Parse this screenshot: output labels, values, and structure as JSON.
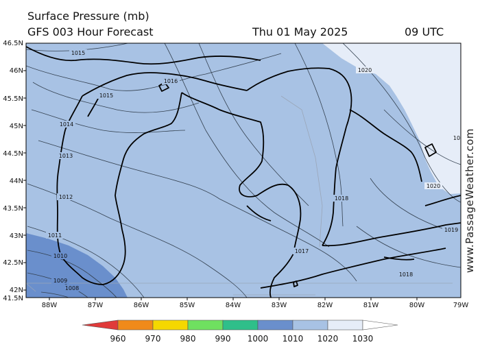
{
  "header": {
    "title": "Surface Pressure (mb)",
    "model_line": "GFS 003 Hour Forecast",
    "date": "Thu 01 May 2025",
    "time": "09 UTC"
  },
  "credit": "www.PassageWeather.com",
  "axes": {
    "lat_labels": [
      "46.5N",
      "46N",
      "45.5N",
      "45N",
      "44.5N",
      "44N",
      "43.5N",
      "43N",
      "42.5N",
      "42N",
      "41.5N"
    ],
    "lon_labels": [
      "88W",
      "87W",
      "86W",
      "85W",
      "84W",
      "83W",
      "82W",
      "81W",
      "80W",
      "79W"
    ]
  },
  "isobar_labels": [
    "1015",
    "1016",
    "1015",
    "1014",
    "1013",
    "1012",
    "1011",
    "1010",
    "1009",
    "1008",
    "1020",
    "1020",
    "1019",
    "1018",
    "1017",
    "1018",
    "10"
  ],
  "colorbar": {
    "labels": [
      "960",
      "970",
      "980",
      "990",
      "1000",
      "1010",
      "1020",
      "1030"
    ],
    "colors": [
      "#e03a3a",
      "#f08a1a",
      "#f5d800",
      "#6fe060",
      "#2fbf8a",
      "#6a8fcc",
      "#a8c2e4",
      "#e6edf8",
      "#ffffff"
    ]
  },
  "colors": {
    "pressure_1010_1020": "#a8c2e4",
    "pressure_1000_1010": "#6a8fcc",
    "pressure_1020_1030": "#e6edf8",
    "coastline": "#000000"
  }
}
